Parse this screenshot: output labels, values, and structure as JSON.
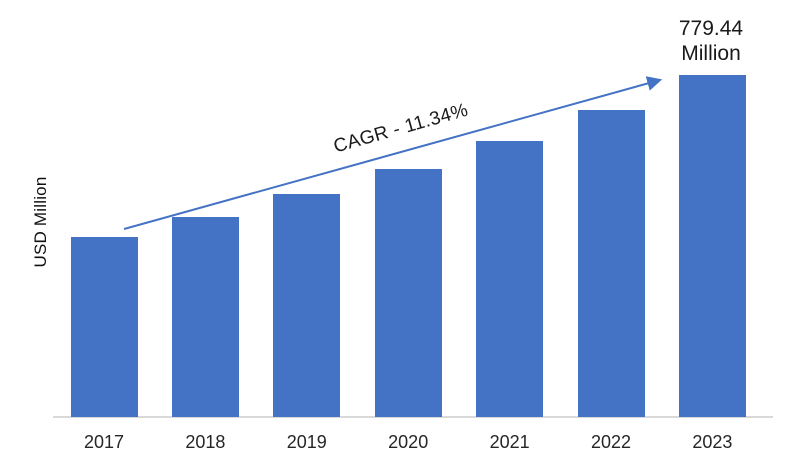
{
  "chart_data": {
    "type": "bar",
    "title": "",
    "xlabel": "",
    "ylabel": "USD Million",
    "categories": [
      "2017",
      "2018",
      "2019",
      "2020",
      "2021",
      "2022",
      "2023"
    ],
    "values": [
      409.1,
      455.5,
      507.2,
      564.7,
      628.8,
      700.1,
      779.44
    ],
    "ylim": [
      0,
      820
    ],
    "grid": "off",
    "legend": "none",
    "bar_color": "#4472C4",
    "axis_line_color": "#d9d9d9",
    "annotations": {
      "cagr_label": "CAGR - 11.34%",
      "end_value_line1": "779.44",
      "end_value_line2": "Million",
      "trend_arrow_color": "#4472C4"
    }
  }
}
